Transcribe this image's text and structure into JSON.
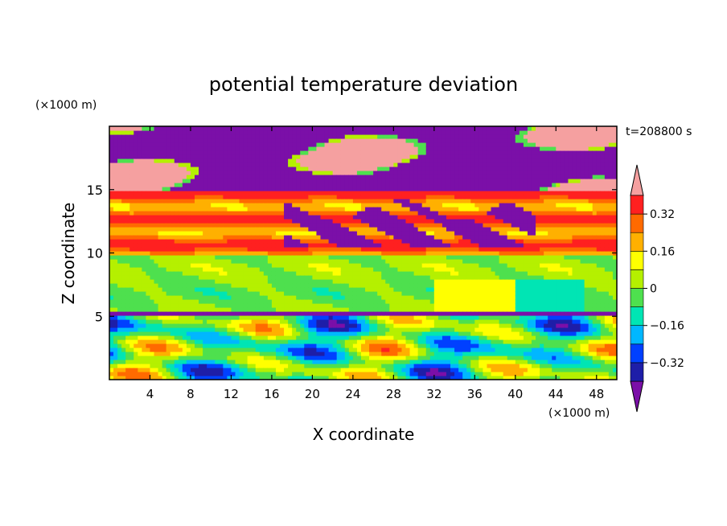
{
  "chart_data": {
    "type": "heatmap",
    "title": "potential temperature deviation",
    "xlabel": "X coordinate",
    "ylabel": "Z coordinate",
    "x_unit": "(×1000 m)",
    "y_unit": "(×1000 m)",
    "time_label": "t=208800 s",
    "x_ticks": [
      4,
      8,
      12,
      16,
      20,
      24,
      28,
      32,
      36,
      40,
      44,
      48
    ],
    "y_ticks": [
      5,
      10,
      15
    ],
    "xlim": [
      0,
      50
    ],
    "ylim": [
      0,
      20
    ],
    "colorbar": {
      "levels": [
        -0.4,
        -0.32,
        -0.24,
        -0.16,
        -0.08,
        0,
        0.08,
        0.16,
        0.24,
        0.32,
        0.4
      ],
      "tick_labels": [
        {
          "value": 0.32,
          "label": "0.32"
        },
        {
          "value": 0.16,
          "label": "0.16"
        },
        {
          "value": 0,
          "label": "0"
        },
        {
          "value": -0.16,
          "label": "−0.16"
        },
        {
          "value": -0.32,
          "label": "−0.32"
        }
      ],
      "colors": [
        "#7b0fa8",
        "#1e1ea8",
        "#0040ff",
        "#00b7ff",
        "#00e5b4",
        "#4ee04e",
        "#b5f000",
        "#ffff00",
        "#ffb000",
        "#ff6a00",
        "#ff2020",
        "#f5a0a0"
      ],
      "extend": "both"
    },
    "bands": [
      {
        "z_range": [
          0,
          5
        ],
        "description_value": -0.2
      },
      {
        "z_range": [
          5,
          10
        ],
        "description_value": 0.0
      },
      {
        "z_range": [
          10,
          15
        ],
        "description_value": 0.3
      },
      {
        "z_range": [
          15,
          20
        ],
        "description_value": -0.4
      }
    ],
    "grid": false
  }
}
